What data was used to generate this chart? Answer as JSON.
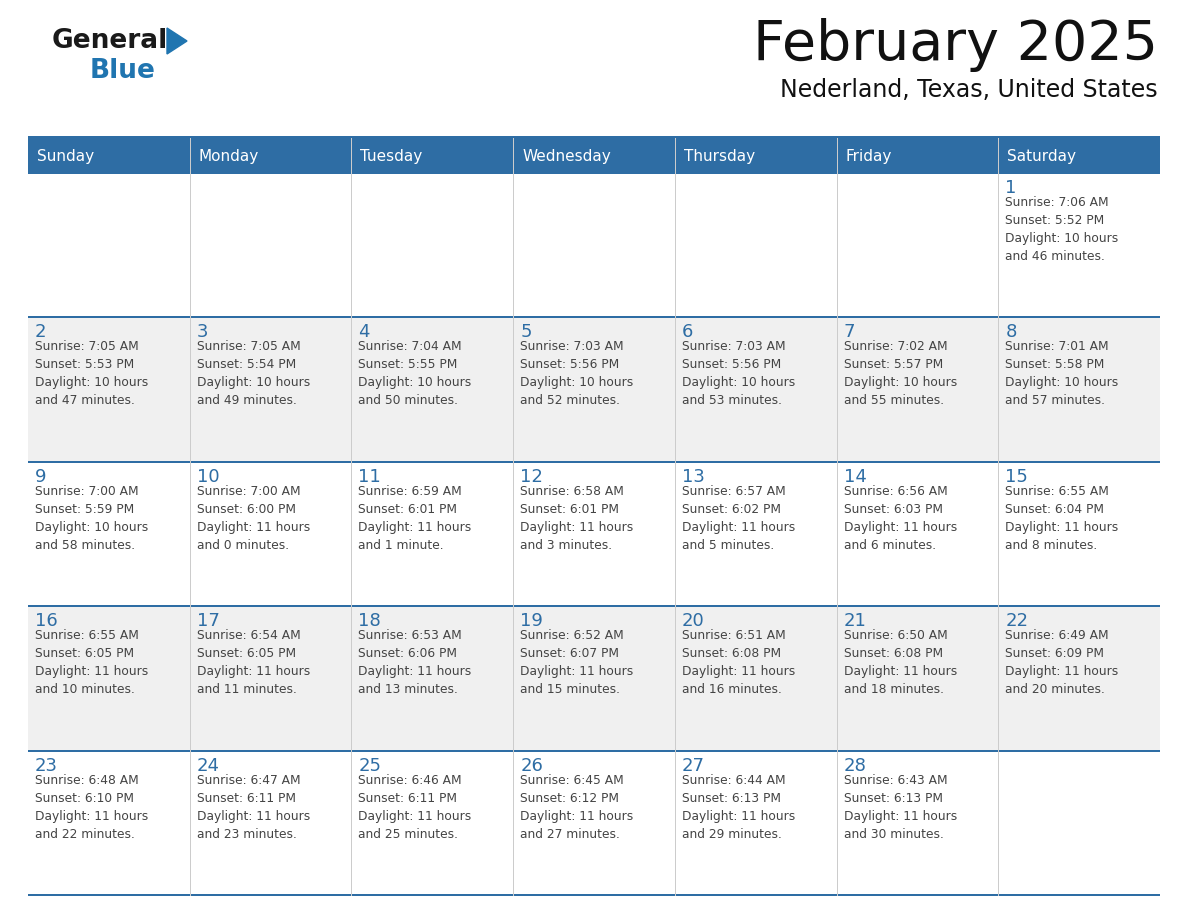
{
  "title": "February 2025",
  "subtitle": "Nederland, Texas, United States",
  "header_bg": "#2E6DA4",
  "header_text_color": "#FFFFFF",
  "cell_bg_odd": "#F0F0F0",
  "cell_bg_even": "#FFFFFF",
  "day_headers": [
    "Sunday",
    "Monday",
    "Tuesday",
    "Wednesday",
    "Thursday",
    "Friday",
    "Saturday"
  ],
  "day_number_color": "#2E6DA4",
  "info_text_color": "#444444",
  "border_color": "#2E6DA4",
  "grid_color": "#CCCCCC",
  "calendar_data": [
    [
      {
        "day": "",
        "info": ""
      },
      {
        "day": "",
        "info": ""
      },
      {
        "day": "",
        "info": ""
      },
      {
        "day": "",
        "info": ""
      },
      {
        "day": "",
        "info": ""
      },
      {
        "day": "",
        "info": ""
      },
      {
        "day": "1",
        "info": "Sunrise: 7:06 AM\nSunset: 5:52 PM\nDaylight: 10 hours\nand 46 minutes."
      }
    ],
    [
      {
        "day": "2",
        "info": "Sunrise: 7:05 AM\nSunset: 5:53 PM\nDaylight: 10 hours\nand 47 minutes."
      },
      {
        "day": "3",
        "info": "Sunrise: 7:05 AM\nSunset: 5:54 PM\nDaylight: 10 hours\nand 49 minutes."
      },
      {
        "day": "4",
        "info": "Sunrise: 7:04 AM\nSunset: 5:55 PM\nDaylight: 10 hours\nand 50 minutes."
      },
      {
        "day": "5",
        "info": "Sunrise: 7:03 AM\nSunset: 5:56 PM\nDaylight: 10 hours\nand 52 minutes."
      },
      {
        "day": "6",
        "info": "Sunrise: 7:03 AM\nSunset: 5:56 PM\nDaylight: 10 hours\nand 53 minutes."
      },
      {
        "day": "7",
        "info": "Sunrise: 7:02 AM\nSunset: 5:57 PM\nDaylight: 10 hours\nand 55 minutes."
      },
      {
        "day": "8",
        "info": "Sunrise: 7:01 AM\nSunset: 5:58 PM\nDaylight: 10 hours\nand 57 minutes."
      }
    ],
    [
      {
        "day": "9",
        "info": "Sunrise: 7:00 AM\nSunset: 5:59 PM\nDaylight: 10 hours\nand 58 minutes."
      },
      {
        "day": "10",
        "info": "Sunrise: 7:00 AM\nSunset: 6:00 PM\nDaylight: 11 hours\nand 0 minutes."
      },
      {
        "day": "11",
        "info": "Sunrise: 6:59 AM\nSunset: 6:01 PM\nDaylight: 11 hours\nand 1 minute."
      },
      {
        "day": "12",
        "info": "Sunrise: 6:58 AM\nSunset: 6:01 PM\nDaylight: 11 hours\nand 3 minutes."
      },
      {
        "day": "13",
        "info": "Sunrise: 6:57 AM\nSunset: 6:02 PM\nDaylight: 11 hours\nand 5 minutes."
      },
      {
        "day": "14",
        "info": "Sunrise: 6:56 AM\nSunset: 6:03 PM\nDaylight: 11 hours\nand 6 minutes."
      },
      {
        "day": "15",
        "info": "Sunrise: 6:55 AM\nSunset: 6:04 PM\nDaylight: 11 hours\nand 8 minutes."
      }
    ],
    [
      {
        "day": "16",
        "info": "Sunrise: 6:55 AM\nSunset: 6:05 PM\nDaylight: 11 hours\nand 10 minutes."
      },
      {
        "day": "17",
        "info": "Sunrise: 6:54 AM\nSunset: 6:05 PM\nDaylight: 11 hours\nand 11 minutes."
      },
      {
        "day": "18",
        "info": "Sunrise: 6:53 AM\nSunset: 6:06 PM\nDaylight: 11 hours\nand 13 minutes."
      },
      {
        "day": "19",
        "info": "Sunrise: 6:52 AM\nSunset: 6:07 PM\nDaylight: 11 hours\nand 15 minutes."
      },
      {
        "day": "20",
        "info": "Sunrise: 6:51 AM\nSunset: 6:08 PM\nDaylight: 11 hours\nand 16 minutes."
      },
      {
        "day": "21",
        "info": "Sunrise: 6:50 AM\nSunset: 6:08 PM\nDaylight: 11 hours\nand 18 minutes."
      },
      {
        "day": "22",
        "info": "Sunrise: 6:49 AM\nSunset: 6:09 PM\nDaylight: 11 hours\nand 20 minutes."
      }
    ],
    [
      {
        "day": "23",
        "info": "Sunrise: 6:48 AM\nSunset: 6:10 PM\nDaylight: 11 hours\nand 22 minutes."
      },
      {
        "day": "24",
        "info": "Sunrise: 6:47 AM\nSunset: 6:11 PM\nDaylight: 11 hours\nand 23 minutes."
      },
      {
        "day": "25",
        "info": "Sunrise: 6:46 AM\nSunset: 6:11 PM\nDaylight: 11 hours\nand 25 minutes."
      },
      {
        "day": "26",
        "info": "Sunrise: 6:45 AM\nSunset: 6:12 PM\nDaylight: 11 hours\nand 27 minutes."
      },
      {
        "day": "27",
        "info": "Sunrise: 6:44 AM\nSunset: 6:13 PM\nDaylight: 11 hours\nand 29 minutes."
      },
      {
        "day": "28",
        "info": "Sunrise: 6:43 AM\nSunset: 6:13 PM\nDaylight: 11 hours\nand 30 minutes."
      },
      {
        "day": "",
        "info": ""
      }
    ]
  ],
  "logo_general_color": "#1a1a1a",
  "logo_blue_color": "#2075B0",
  "logo_triangle_color": "#2075B0",
  "fig_width": 11.88,
  "fig_height": 9.18,
  "dpi": 100
}
